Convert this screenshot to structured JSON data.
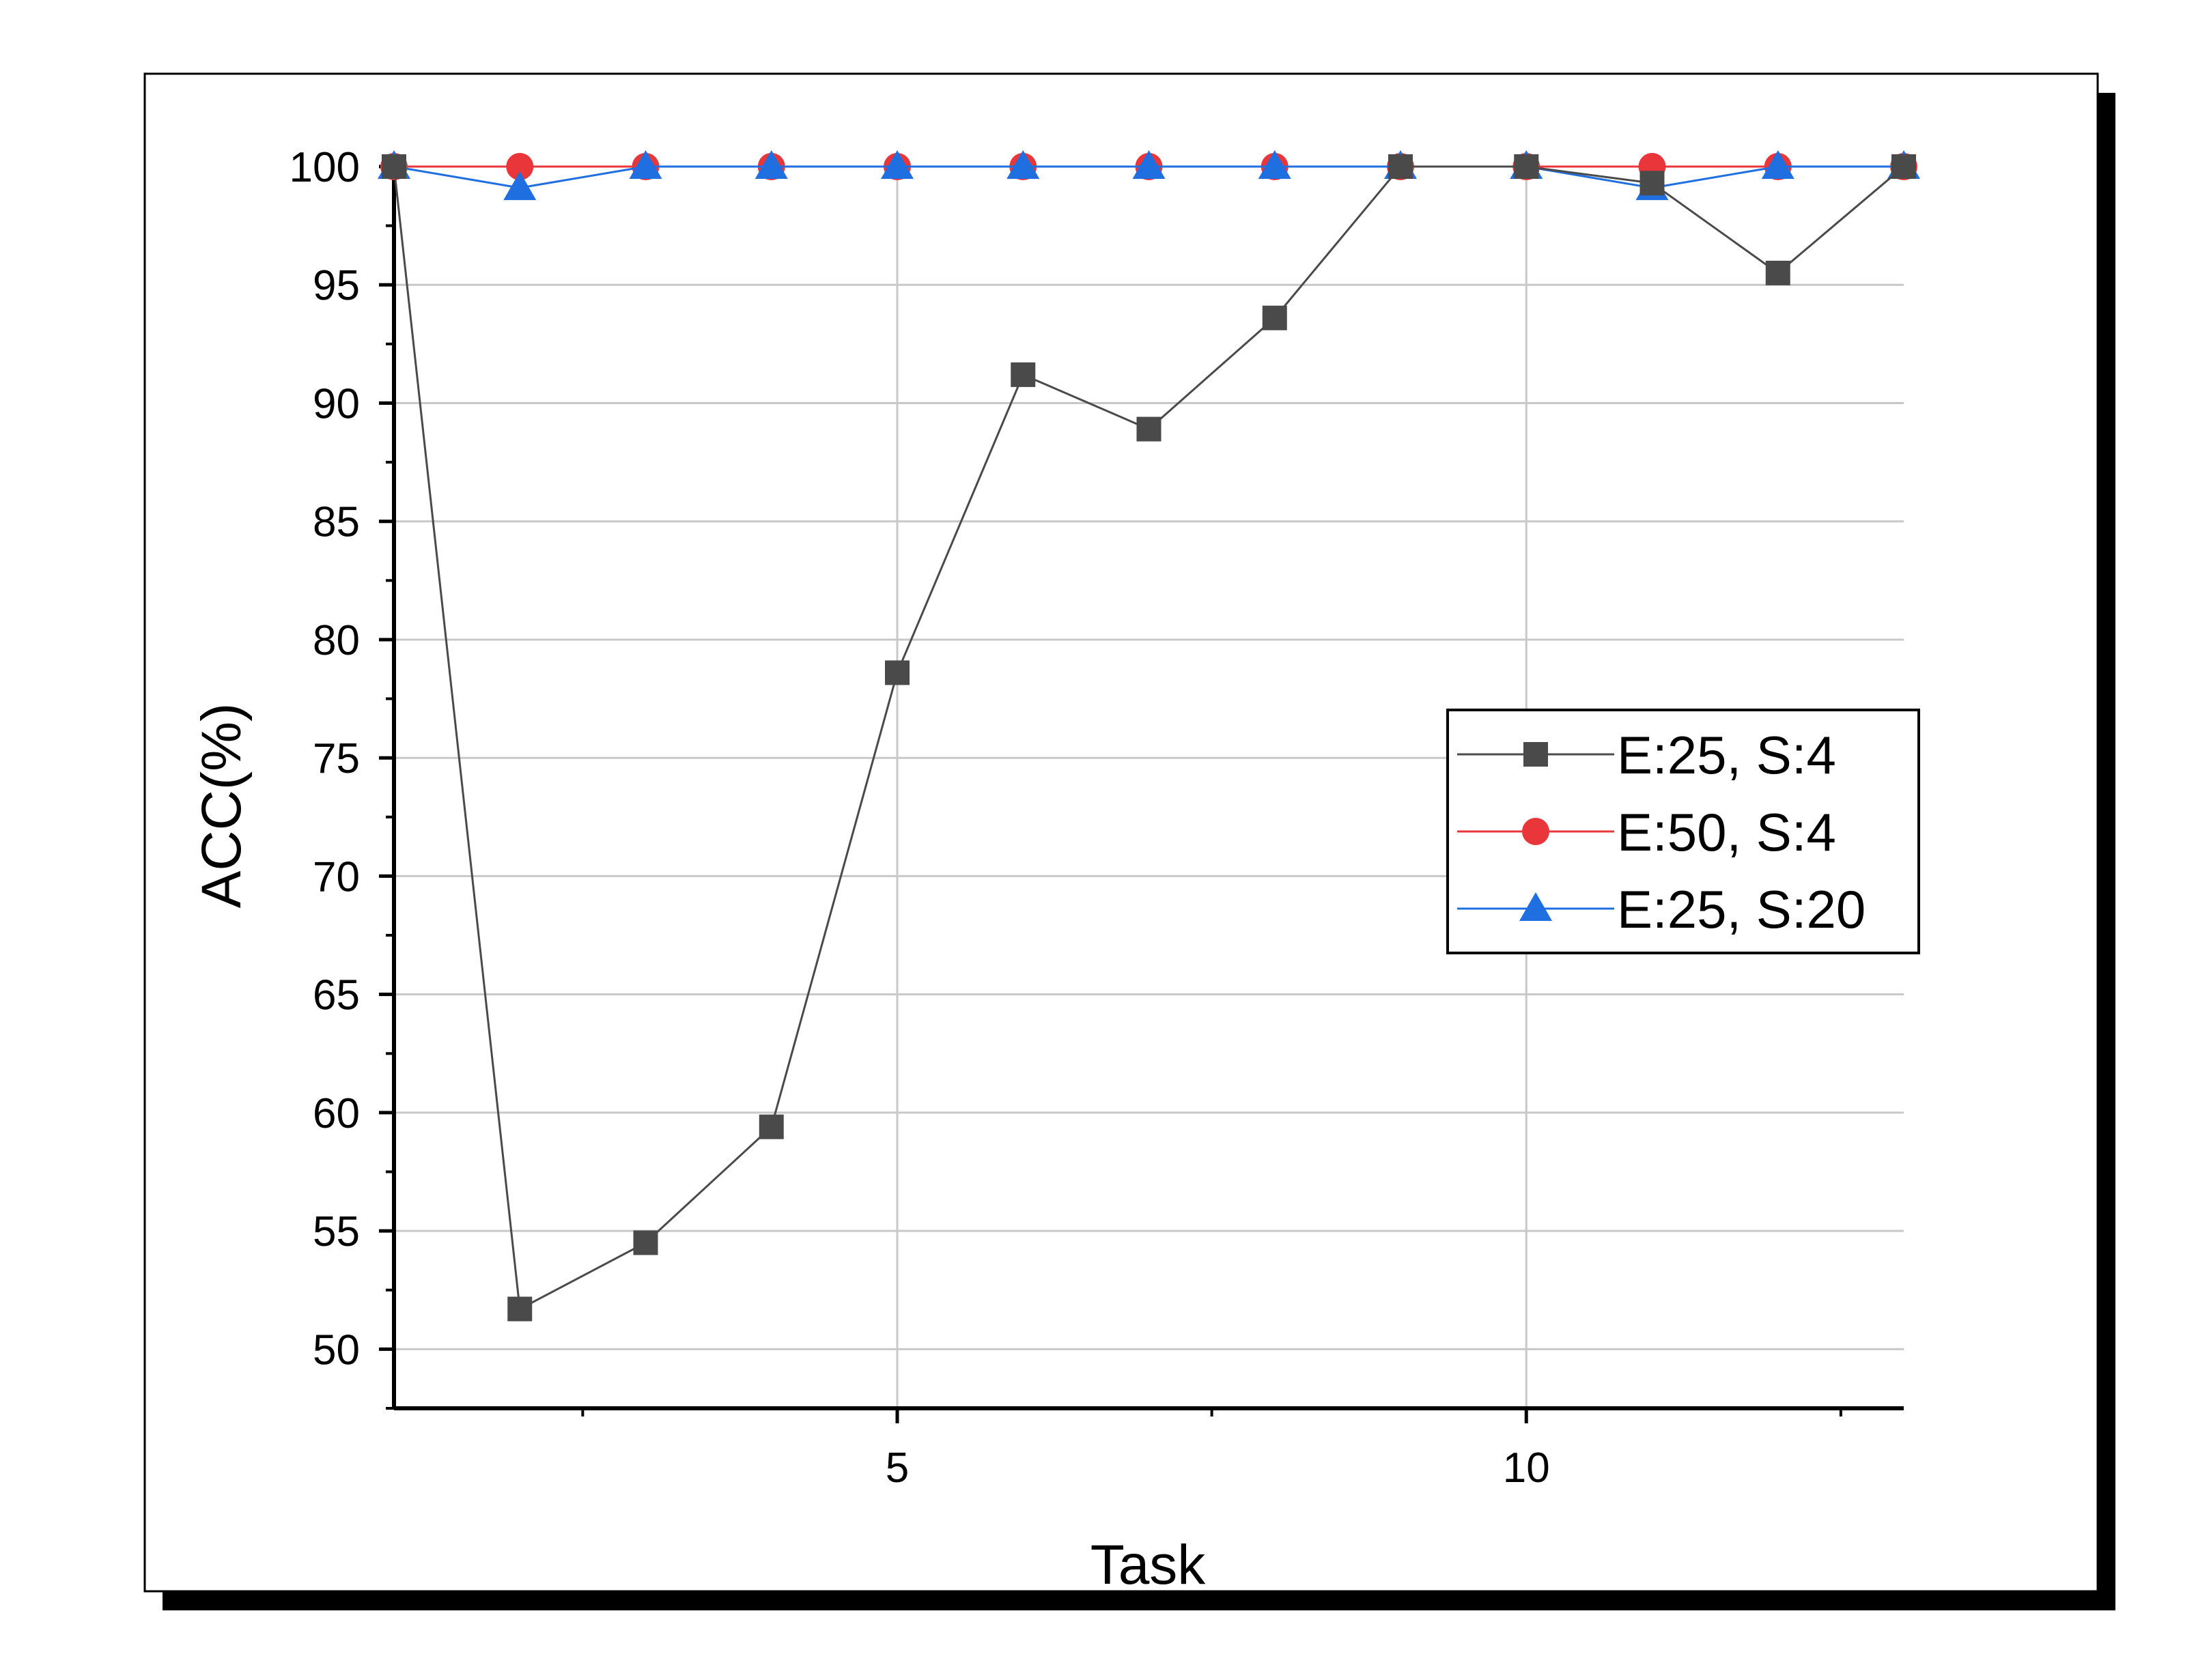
{
  "chart_data": {
    "type": "line",
    "xlabel": "Task",
    "ylabel": "ACC(%)",
    "xlim": [
      1,
      13
    ],
    "ylim": [
      47.5,
      100
    ],
    "x_ticks": [
      5,
      10
    ],
    "y_ticks": [
      50,
      55,
      60,
      65,
      70,
      75,
      80,
      85,
      90,
      95,
      100
    ],
    "grid": true,
    "legend_position": "right",
    "x": [
      1,
      2,
      3,
      4,
      5,
      6,
      7,
      8,
      9,
      10,
      11,
      12,
      13
    ],
    "series": [
      {
        "name": "E:25, S:4",
        "color": "#4a4a4a",
        "marker": "square",
        "values": [
          100,
          51.7,
          54.5,
          59.4,
          78.6,
          91.2,
          88.9,
          93.6,
          100,
          100,
          99.3,
          95.5,
          100
        ]
      },
      {
        "name": "E:50, S:4",
        "color": "#e8363a",
        "marker": "circle",
        "values": [
          100,
          100,
          100,
          100,
          100,
          100,
          100,
          100,
          100,
          100,
          100,
          100,
          100
        ]
      },
      {
        "name": "E:25, S:20",
        "color": "#1f6fe0",
        "marker": "triangle",
        "values": [
          100,
          99.1,
          100,
          100,
          100,
          100,
          100,
          100,
          100,
          100,
          99.1,
          100,
          100
        ]
      }
    ]
  }
}
